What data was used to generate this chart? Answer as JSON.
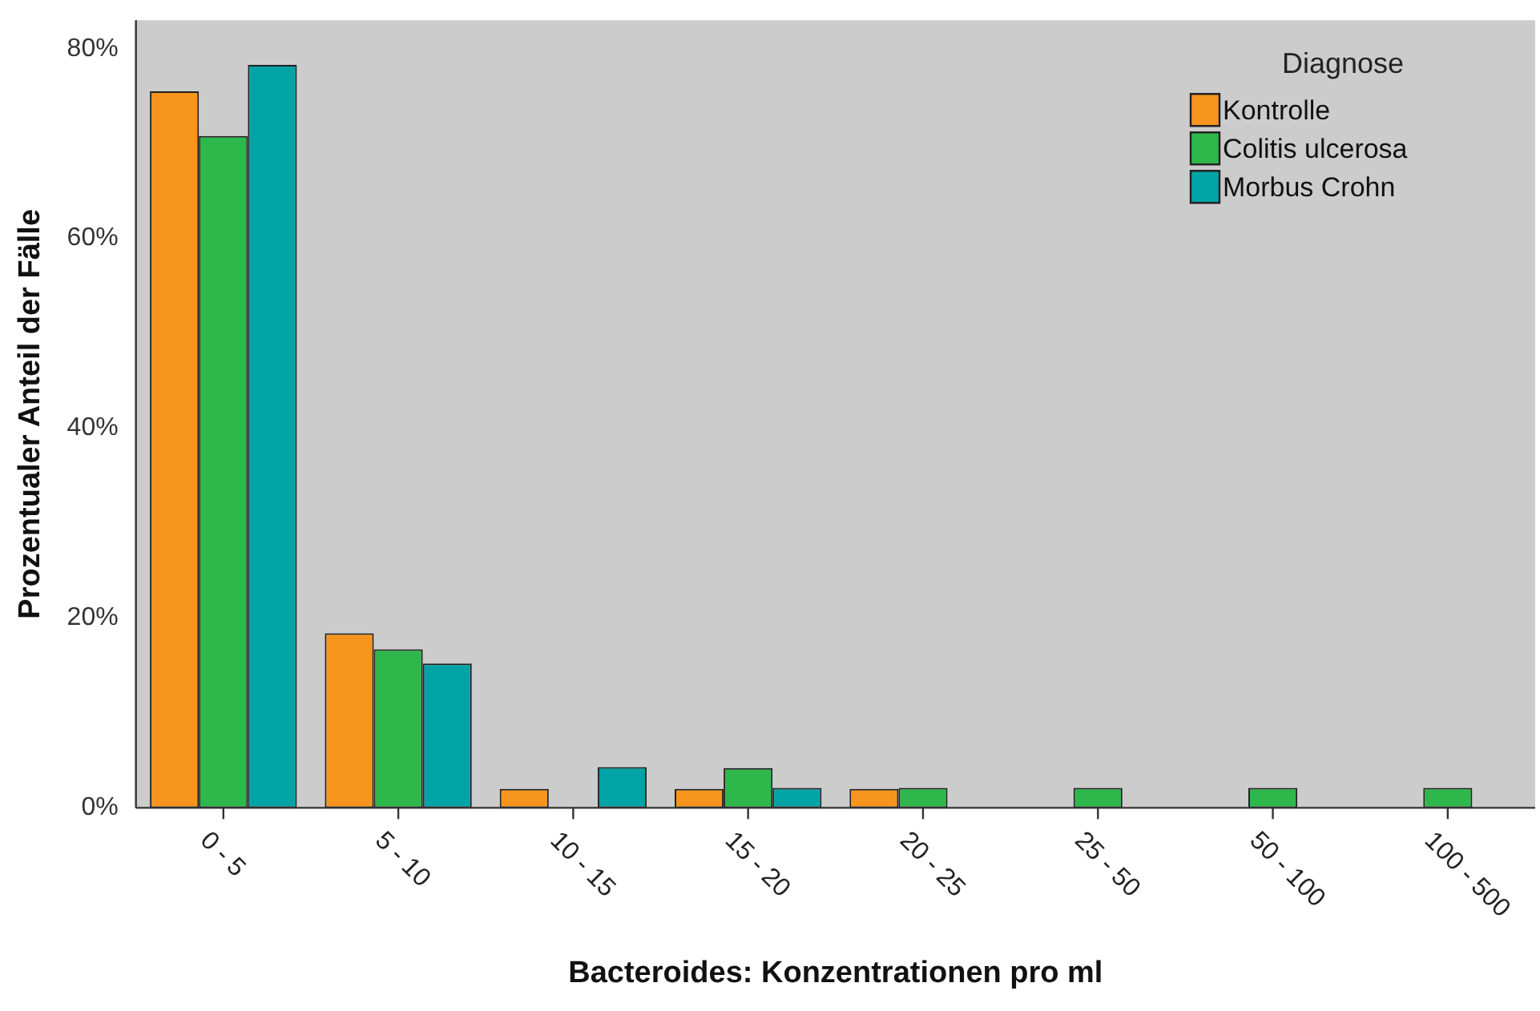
{
  "chart_data": {
    "type": "bar",
    "xlabel": "Bacteroides: Konzentrationen pro ml",
    "ylabel": "Prozentualer Anteil der Fälle",
    "legend_title": "Diagnose",
    "categories": [
      "0 - 5",
      "5 - 10",
      "10 - 15",
      "15 - 20",
      "20 - 25",
      "25 - 50",
      "50 - 100",
      "100 - 500"
    ],
    "series": [
      {
        "name": "Kontrolle",
        "color": "#f7941d",
        "values": [
          75.5,
          18.4,
          2.0,
          2.0,
          2.0,
          0,
          0,
          0
        ]
      },
      {
        "name": "Colitis ulcerosa",
        "color": "#2eb84b",
        "values": [
          70.8,
          16.7,
          0,
          4.2,
          2.1,
          2.1,
          2.1,
          2.1
        ]
      },
      {
        "name": "Morbus Crohn",
        "color": "#00a4a6",
        "values": [
          78.3,
          15.2,
          4.3,
          2.1,
          0,
          0,
          0,
          0
        ]
      }
    ],
    "ylim": [
      0,
      83
    ],
    "yticks": [
      {
        "value": 0,
        "label": "0%"
      },
      {
        "value": 20,
        "label": "20%"
      },
      {
        "value": 40,
        "label": "40%"
      },
      {
        "value": 60,
        "label": "60%"
      },
      {
        "value": 80,
        "label": "80%"
      }
    ],
    "grid": false,
    "legend": "top right"
  }
}
